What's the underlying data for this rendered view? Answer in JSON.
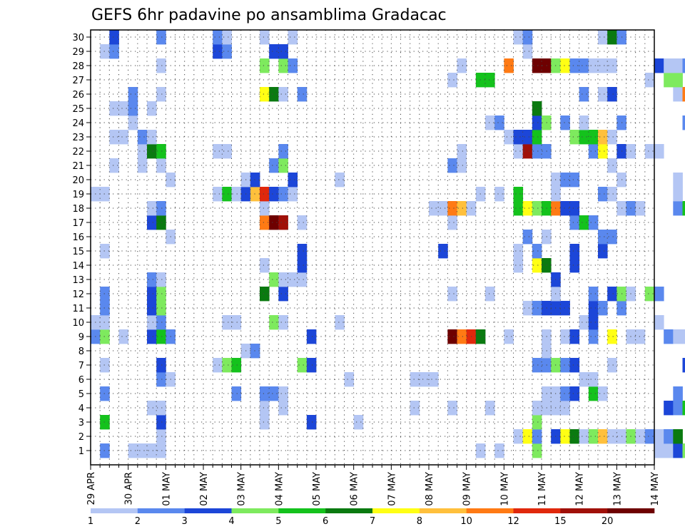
{
  "chart_data": {
    "type": "heatmap",
    "title": "GEFS 6hr padavine po ansamblima Gradacac",
    "y_ticks": [
      "1",
      "2",
      "3",
      "4",
      "5",
      "6",
      "7",
      "8",
      "9",
      "10",
      "11",
      "12",
      "13",
      "14",
      "15",
      "16",
      "17",
      "18",
      "19",
      "20",
      "21",
      "22",
      "23",
      "24",
      "25",
      "26",
      "27",
      "28",
      "29",
      "30"
    ],
    "x_ticks": [
      "29 APR",
      "30 APR",
      "01 MAY",
      "02 MAY",
      "03 MAY",
      "04 MAY",
      "05 MAY",
      "06 MAY",
      "07 MAY",
      "08 MAY",
      "09 MAY",
      "10 MAY",
      "11 MAY",
      "12 MAY",
      "13 MAY",
      "14 MAY"
    ],
    "x_range": [
      "29 APR 00Z",
      "14 MAY 00Z"
    ],
    "time_step_hours": 6,
    "y_range": [
      0,
      30
    ],
    "grid": "dotted",
    "colorbar": {
      "labels": [
        "1",
        "2",
        "3",
        "4",
        "5",
        "6",
        "7",
        "8",
        "10",
        "12",
        "15",
        "20"
      ],
      "colors": [
        "#b4c6f4",
        "#5a88ee",
        "#1c46d8",
        "#7eea5e",
        "#14c21c",
        "#0a7a10",
        "#ffff14",
        "#ffc03c",
        "#ff7a14",
        "#e0280c",
        "#a01008",
        "#6e0000"
      ]
    },
    "cells": [
      [
        1,
        1,
        2
      ],
      [
        1,
        4,
        1
      ],
      [
        1,
        5,
        1
      ],
      [
        1,
        6,
        1
      ],
      [
        1,
        7,
        1
      ],
      [
        1,
        41,
        1
      ],
      [
        1,
        43,
        1
      ],
      [
        1,
        47,
        4
      ],
      [
        1,
        60,
        1
      ],
      [
        1,
        61,
        1
      ],
      [
        1,
        62,
        3
      ],
      [
        1,
        63,
        4
      ],
      [
        1,
        64,
        5
      ],
      [
        2,
        7,
        1
      ],
      [
        2,
        45,
        1
      ],
      [
        2,
        46,
        7
      ],
      [
        2,
        47,
        2
      ],
      [
        2,
        49,
        3
      ],
      [
        2,
        50,
        7
      ],
      [
        2,
        51,
        6
      ],
      [
        2,
        52,
        1
      ],
      [
        2,
        53,
        4
      ],
      [
        2,
        54,
        8
      ],
      [
        2,
        55,
        1
      ],
      [
        2,
        56,
        1
      ],
      [
        2,
        57,
        4
      ],
      [
        2,
        58,
        1
      ],
      [
        2,
        59,
        2
      ],
      [
        2,
        60,
        1
      ],
      [
        2,
        61,
        2
      ],
      [
        2,
        62,
        6
      ],
      [
        3,
        1,
        5
      ],
      [
        3,
        7,
        3
      ],
      [
        3,
        18,
        1
      ],
      [
        3,
        23,
        3
      ],
      [
        3,
        28,
        1
      ],
      [
        3,
        47,
        4
      ],
      [
        4,
        6,
        1
      ],
      [
        4,
        7,
        1
      ],
      [
        4,
        18,
        1
      ],
      [
        4,
        20,
        1
      ],
      [
        4,
        34,
        1
      ],
      [
        4,
        38,
        1
      ],
      [
        4,
        42,
        1
      ],
      [
        4,
        47,
        1
      ],
      [
        4,
        48,
        1
      ],
      [
        4,
        49,
        1
      ],
      [
        4,
        50,
        1
      ],
      [
        4,
        61,
        3
      ],
      [
        4,
        62,
        2
      ],
      [
        4,
        63,
        5
      ],
      [
        5,
        1,
        2
      ],
      [
        5,
        15,
        2
      ],
      [
        5,
        18,
        2
      ],
      [
        5,
        19,
        2
      ],
      [
        5,
        20,
        1
      ],
      [
        5,
        48,
        1
      ],
      [
        5,
        49,
        1
      ],
      [
        5,
        50,
        2
      ],
      [
        5,
        51,
        3
      ],
      [
        5,
        53,
        5
      ],
      [
        5,
        54,
        1
      ],
      [
        5,
        62,
        2
      ],
      [
        6,
        7,
        2
      ],
      [
        6,
        8,
        1
      ],
      [
        6,
        27,
        1
      ],
      [
        6,
        34,
        1
      ],
      [
        6,
        35,
        1
      ],
      [
        6,
        36,
        1
      ],
      [
        6,
        52,
        1
      ],
      [
        6,
        53,
        1
      ],
      [
        7,
        1,
        1
      ],
      [
        7,
        7,
        3
      ],
      [
        7,
        13,
        1
      ],
      [
        7,
        14,
        4
      ],
      [
        7,
        15,
        5
      ],
      [
        7,
        22,
        4
      ],
      [
        7,
        23,
        3
      ],
      [
        7,
        47,
        2
      ],
      [
        7,
        48,
        2
      ],
      [
        7,
        49,
        4
      ],
      [
        7,
        50,
        2
      ],
      [
        7,
        51,
        3
      ],
      [
        7,
        55,
        1
      ],
      [
        7,
        63,
        3
      ],
      [
        7,
        64,
        3
      ],
      [
        8,
        16,
        1
      ],
      [
        8,
        17,
        2
      ],
      [
        8,
        48,
        1
      ],
      [
        9,
        0,
        2
      ],
      [
        9,
        1,
        4
      ],
      [
        9,
        3,
        1
      ],
      [
        9,
        6,
        3
      ],
      [
        9,
        7,
        5
      ],
      [
        9,
        8,
        2
      ],
      [
        9,
        23,
        3
      ],
      [
        9,
        38,
        12
      ],
      [
        9,
        39,
        9
      ],
      [
        9,
        40,
        10
      ],
      [
        9,
        41,
        6
      ],
      [
        9,
        44,
        1
      ],
      [
        9,
        48,
        1
      ],
      [
        9,
        50,
        1
      ],
      [
        9,
        51,
        3
      ],
      [
        9,
        53,
        2
      ],
      [
        9,
        55,
        7
      ],
      [
        9,
        57,
        1
      ],
      [
        9,
        58,
        1
      ],
      [
        9,
        61,
        2
      ],
      [
        9,
        62,
        1
      ],
      [
        9,
        63,
        1
      ],
      [
        9,
        64,
        3
      ],
      [
        10,
        0,
        1
      ],
      [
        10,
        1,
        1
      ],
      [
        10,
        6,
        1
      ],
      [
        10,
        7,
        2
      ],
      [
        10,
        14,
        1
      ],
      [
        10,
        15,
        1
      ],
      [
        10,
        19,
        4
      ],
      [
        10,
        20,
        1
      ],
      [
        10,
        26,
        1
      ],
      [
        10,
        52,
        1
      ],
      [
        10,
        53,
        3
      ],
      [
        10,
        60,
        1
      ],
      [
        11,
        1,
        2
      ],
      [
        11,
        6,
        3
      ],
      [
        11,
        7,
        4
      ],
      [
        11,
        46,
        1
      ],
      [
        11,
        47,
        2
      ],
      [
        11,
        48,
        3
      ],
      [
        11,
        49,
        3
      ],
      [
        11,
        50,
        3
      ],
      [
        11,
        53,
        3
      ],
      [
        11,
        54,
        2
      ],
      [
        11,
        56,
        2
      ],
      [
        12,
        1,
        2
      ],
      [
        12,
        6,
        3
      ],
      [
        12,
        7,
        4
      ],
      [
        12,
        18,
        6
      ],
      [
        12,
        20,
        3
      ],
      [
        12,
        38,
        1
      ],
      [
        12,
        42,
        1
      ],
      [
        12,
        49,
        1
      ],
      [
        12,
        53,
        2
      ],
      [
        12,
        55,
        3
      ],
      [
        12,
        56,
        4
      ],
      [
        12,
        57,
        1
      ],
      [
        12,
        59,
        4
      ],
      [
        12,
        60,
        2
      ],
      [
        13,
        6,
        2
      ],
      [
        13,
        7,
        1
      ],
      [
        13,
        19,
        4
      ],
      [
        13,
        20,
        1
      ],
      [
        13,
        21,
        1
      ],
      [
        13,
        22,
        1
      ],
      [
        13,
        49,
        3
      ],
      [
        13,
        64,
        2
      ],
      [
        14,
        18,
        1
      ],
      [
        14,
        22,
        3
      ],
      [
        14,
        45,
        1
      ],
      [
        14,
        47,
        7
      ],
      [
        14,
        48,
        6
      ],
      [
        14,
        51,
        3
      ],
      [
        15,
        1,
        1
      ],
      [
        15,
        22,
        3
      ],
      [
        15,
        37,
        3
      ],
      [
        15,
        45,
        1
      ],
      [
        15,
        47,
        2
      ],
      [
        15,
        51,
        3
      ],
      [
        15,
        54,
        3
      ],
      [
        15,
        64,
        1
      ],
      [
        16,
        8,
        1
      ],
      [
        16,
        46,
        2
      ],
      [
        16,
        48,
        1
      ],
      [
        16,
        54,
        2
      ],
      [
        16,
        55,
        2
      ],
      [
        16,
        64,
        1
      ],
      [
        17,
        6,
        3
      ],
      [
        17,
        7,
        6
      ],
      [
        17,
        18,
        9
      ],
      [
        17,
        19,
        12
      ],
      [
        17,
        20,
        11
      ],
      [
        17,
        22,
        1
      ],
      [
        17,
        38,
        1
      ],
      [
        17,
        51,
        2
      ],
      [
        17,
        52,
        5
      ],
      [
        17,
        53,
        2
      ],
      [
        18,
        6,
        1
      ],
      [
        18,
        7,
        2
      ],
      [
        18,
        18,
        1
      ],
      [
        18,
        36,
        1
      ],
      [
        18,
        37,
        1
      ],
      [
        18,
        38,
        9
      ],
      [
        18,
        39,
        8
      ],
      [
        18,
        40,
        1
      ],
      [
        18,
        45,
        5
      ],
      [
        18,
        46,
        7
      ],
      [
        18,
        47,
        4
      ],
      [
        18,
        48,
        5
      ],
      [
        18,
        49,
        9
      ],
      [
        18,
        50,
        3
      ],
      [
        18,
        51,
        3
      ],
      [
        18,
        56,
        1
      ],
      [
        18,
        57,
        2
      ],
      [
        18,
        58,
        1
      ],
      [
        18,
        62,
        2
      ],
      [
        18,
        63,
        5
      ],
      [
        19,
        0,
        1
      ],
      [
        19,
        1,
        1
      ],
      [
        19,
        13,
        1
      ],
      [
        19,
        14,
        5
      ],
      [
        19,
        15,
        1
      ],
      [
        19,
        16,
        3
      ],
      [
        19,
        17,
        8
      ],
      [
        19,
        18,
        10
      ],
      [
        19,
        19,
        3
      ],
      [
        19,
        20,
        2
      ],
      [
        19,
        21,
        1
      ],
      [
        19,
        41,
        1
      ],
      [
        19,
        43,
        1
      ],
      [
        19,
        45,
        5
      ],
      [
        19,
        49,
        1
      ],
      [
        19,
        54,
        2
      ],
      [
        19,
        55,
        1
      ],
      [
        19,
        62,
        1
      ],
      [
        20,
        8,
        1
      ],
      [
        20,
        16,
        1
      ],
      [
        20,
        17,
        3
      ],
      [
        20,
        21,
        3
      ],
      [
        20,
        26,
        1
      ],
      [
        20,
        49,
        1
      ],
      [
        20,
        50,
        2
      ],
      [
        20,
        51,
        2
      ],
      [
        20,
        56,
        1
      ],
      [
        20,
        62,
        1
      ],
      [
        21,
        2,
        1
      ],
      [
        21,
        5,
        1
      ],
      [
        21,
        7,
        1
      ],
      [
        21,
        19,
        2
      ],
      [
        21,
        20,
        4
      ],
      [
        21,
        38,
        2
      ],
      [
        21,
        39,
        1
      ],
      [
        21,
        55,
        1
      ],
      [
        22,
        5,
        1
      ],
      [
        22,
        6,
        6
      ],
      [
        22,
        7,
        5
      ],
      [
        22,
        13,
        1
      ],
      [
        22,
        14,
        1
      ],
      [
        22,
        20,
        2
      ],
      [
        22,
        39,
        1
      ],
      [
        22,
        45,
        1
      ],
      [
        22,
        46,
        11
      ],
      [
        22,
        47,
        2
      ],
      [
        22,
        48,
        2
      ],
      [
        22,
        53,
        2
      ],
      [
        22,
        54,
        7
      ],
      [
        22,
        56,
        3
      ],
      [
        22,
        57,
        1
      ],
      [
        22,
        59,
        1
      ],
      [
        22,
        60,
        1
      ],
      [
        22,
        64,
        2
      ],
      [
        23,
        2,
        1
      ],
      [
        23,
        3,
        1
      ],
      [
        23,
        5,
        2
      ],
      [
        23,
        6,
        1
      ],
      [
        23,
        44,
        1
      ],
      [
        23,
        45,
        3
      ],
      [
        23,
        46,
        3
      ],
      [
        23,
        47,
        5
      ],
      [
        23,
        51,
        4
      ],
      [
        23,
        52,
        5
      ],
      [
        23,
        53,
        5
      ],
      [
        23,
        54,
        8
      ],
      [
        23,
        55,
        1
      ],
      [
        24,
        4,
        1
      ],
      [
        24,
        42,
        1
      ],
      [
        24,
        43,
        2
      ],
      [
        24,
        47,
        3
      ],
      [
        24,
        48,
        4
      ],
      [
        24,
        50,
        2
      ],
      [
        24,
        52,
        1
      ],
      [
        24,
        56,
        2
      ],
      [
        24,
        63,
        2
      ],
      [
        25,
        2,
        1
      ],
      [
        25,
        3,
        1
      ],
      [
        25,
        4,
        2
      ],
      [
        25,
        6,
        1
      ],
      [
        25,
        47,
        6
      ],
      [
        26,
        4,
        2
      ],
      [
        26,
        7,
        1
      ],
      [
        26,
        18,
        7
      ],
      [
        26,
        19,
        6
      ],
      [
        26,
        20,
        1
      ],
      [
        26,
        22,
        2
      ],
      [
        26,
        52,
        2
      ],
      [
        26,
        54,
        1
      ],
      [
        26,
        55,
        3
      ],
      [
        26,
        62,
        1
      ],
      [
        26,
        63,
        9
      ],
      [
        26,
        64,
        11
      ],
      [
        27,
        38,
        1
      ],
      [
        27,
        41,
        5
      ],
      [
        27,
        42,
        5
      ],
      [
        27,
        59,
        1
      ],
      [
        27,
        61,
        4
      ],
      [
        27,
        62,
        4
      ],
      [
        28,
        7,
        1
      ],
      [
        28,
        18,
        4
      ],
      [
        28,
        20,
        4
      ],
      [
        28,
        21,
        2
      ],
      [
        28,
        39,
        1
      ],
      [
        28,
        44,
        9
      ],
      [
        28,
        47,
        12
      ],
      [
        28,
        48,
        12
      ],
      [
        28,
        49,
        4
      ],
      [
        28,
        50,
        7
      ],
      [
        28,
        51,
        2
      ],
      [
        28,
        52,
        2
      ],
      [
        28,
        53,
        1
      ],
      [
        28,
        54,
        1
      ],
      [
        28,
        55,
        1
      ],
      [
        28,
        60,
        3
      ],
      [
        28,
        61,
        1
      ],
      [
        28,
        62,
        1
      ],
      [
        28,
        63,
        2
      ],
      [
        29,
        1,
        1
      ],
      [
        29,
        2,
        2
      ],
      [
        29,
        13,
        3
      ],
      [
        29,
        14,
        2
      ],
      [
        29,
        19,
        3
      ],
      [
        29,
        20,
        3
      ],
      [
        29,
        46,
        1
      ],
      [
        30,
        2,
        3
      ],
      [
        30,
        7,
        2
      ],
      [
        30,
        13,
        2
      ],
      [
        30,
        14,
        1
      ],
      [
        30,
        18,
        1
      ],
      [
        30,
        21,
        1
      ],
      [
        30,
        45,
        1
      ],
      [
        30,
        46,
        2
      ],
      [
        30,
        54,
        1
      ],
      [
        30,
        55,
        6
      ],
      [
        30,
        56,
        2
      ]
    ]
  }
}
